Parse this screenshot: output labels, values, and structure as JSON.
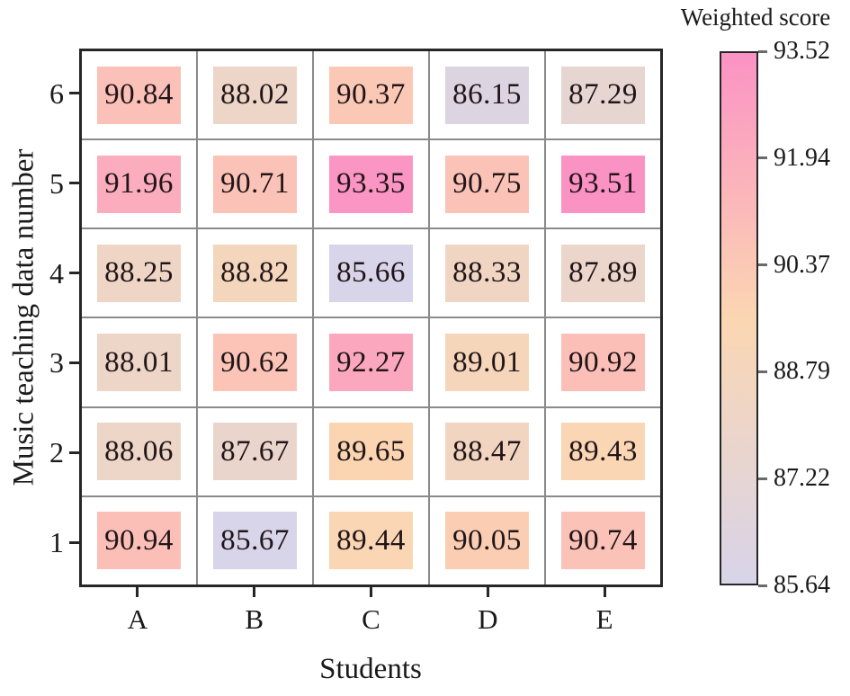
{
  "chart_data": {
    "type": "heatmap",
    "xlabel": "Students",
    "ylabel": "Music teaching data number",
    "x_categories": [
      "A",
      "B",
      "C",
      "D",
      "E"
    ],
    "y_categories_top_to_bottom": [
      "6",
      "5",
      "4",
      "3",
      "2",
      "1"
    ],
    "rows": [
      {
        "y": "6",
        "values": [
          90.84,
          88.02,
          90.37,
          86.15,
          87.29
        ]
      },
      {
        "y": "5",
        "values": [
          91.96,
          90.71,
          93.35,
          90.75,
          93.51
        ]
      },
      {
        "y": "4",
        "values": [
          88.25,
          88.82,
          85.66,
          88.33,
          87.89
        ]
      },
      {
        "y": "3",
        "values": [
          88.01,
          90.62,
          92.27,
          89.01,
          90.92
        ]
      },
      {
        "y": "2",
        "values": [
          88.06,
          87.67,
          89.65,
          88.47,
          89.43
        ]
      },
      {
        "y": "1",
        "values": [
          90.94,
          85.67,
          89.44,
          90.05,
          90.74
        ]
      }
    ],
    "colorbar": {
      "label": "Weighted score",
      "tick_labels_top_to_bottom": [
        "93.52",
        "91.94",
        "90.37",
        "88.79",
        "87.22",
        "85.64"
      ],
      "vmin": 85.64,
      "vmax": 93.52,
      "gradient_stops": [
        {
          "t": 0.0,
          "color": "#d8d4e9"
        },
        {
          "t": 0.5,
          "color": "#fbd6b2"
        },
        {
          "t": 1.0,
          "color": "#fb92c4"
        }
      ]
    },
    "colors": {
      "cell_text": "#201518",
      "grid": "#8a8a8a",
      "border": "#262626",
      "background": "#ffffff"
    },
    "value_decimals": 2,
    "grid_on": true,
    "legend_position": "right-colorbar"
  }
}
